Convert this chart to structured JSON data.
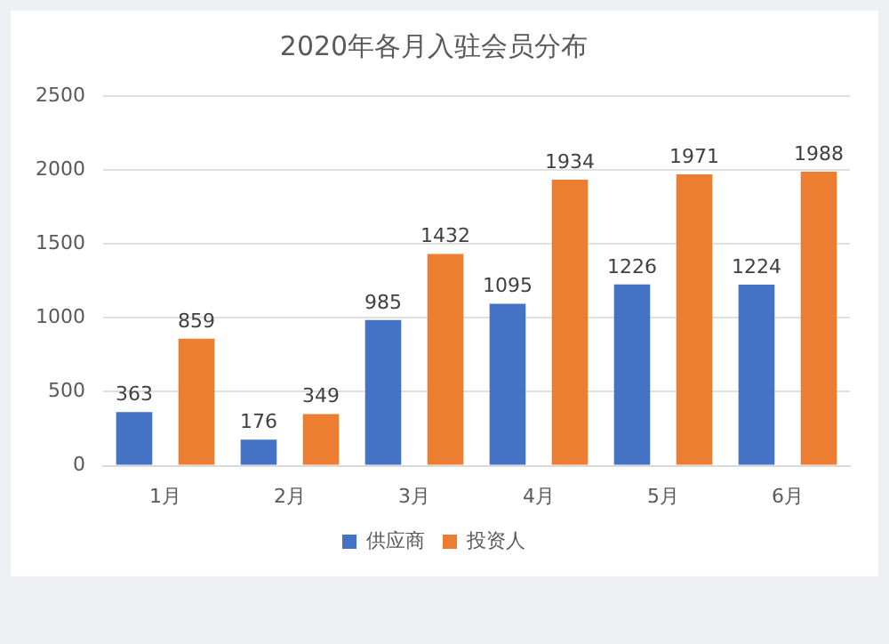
{
  "chart_data": {
    "type": "bar",
    "title": "2020年各月入驻会员分布",
    "categories": [
      "1月",
      "2月",
      "3月",
      "4月",
      "5月",
      "6月"
    ],
    "series": [
      {
        "name": "供应商",
        "color": "#4472c4",
        "values": [
          363,
          176,
          985,
          1095,
          1226,
          1224
        ]
      },
      {
        "name": "投资人",
        "color": "#ed7d31",
        "values": [
          859,
          349,
          1432,
          1934,
          1971,
          1988
        ]
      }
    ],
    "ylim": [
      0,
      2500
    ],
    "yticks": [
      0,
      500,
      1000,
      1500,
      2000,
      2500
    ],
    "grid": "y",
    "legend": "bottom",
    "data_labels": true
  }
}
